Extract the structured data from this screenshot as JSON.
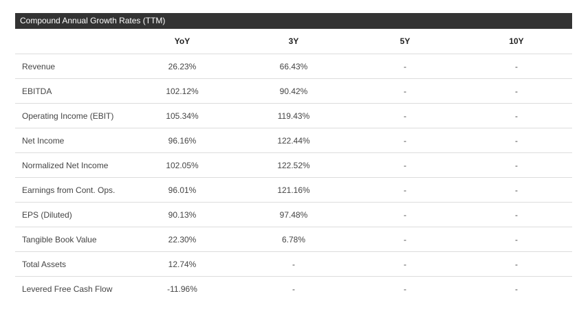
{
  "panel": {
    "title": "Compound Annual Growth Rates (TTM)"
  },
  "columns": [
    "YoY",
    "3Y",
    "5Y",
    "10Y"
  ],
  "rows": [
    {
      "label": "Revenue",
      "values": [
        "26.23%",
        "66.43%",
        "-",
        "-"
      ]
    },
    {
      "label": "EBITDA",
      "values": [
        "102.12%",
        "90.42%",
        "-",
        "-"
      ]
    },
    {
      "label": "Operating Income (EBIT)",
      "values": [
        "105.34%",
        "119.43%",
        "-",
        "-"
      ]
    },
    {
      "label": "Net Income",
      "values": [
        "96.16%",
        "122.44%",
        "-",
        "-"
      ]
    },
    {
      "label": "Normalized Net Income",
      "values": [
        "102.05%",
        "122.52%",
        "-",
        "-"
      ]
    },
    {
      "label": "Earnings from Cont. Ops.",
      "values": [
        "96.01%",
        "121.16%",
        "-",
        "-"
      ]
    },
    {
      "label": "EPS (Diluted)",
      "values": [
        "90.13%",
        "97.48%",
        "-",
        "-"
      ]
    },
    {
      "label": "Tangible Book Value",
      "values": [
        "22.30%",
        "6.78%",
        "-",
        "-"
      ]
    },
    {
      "label": "Total Assets",
      "values": [
        "12.74%",
        "-",
        "-",
        "-"
      ]
    },
    {
      "label": "Levered Free Cash Flow",
      "values": [
        "-11.96%",
        "-",
        "-",
        "-"
      ]
    }
  ]
}
